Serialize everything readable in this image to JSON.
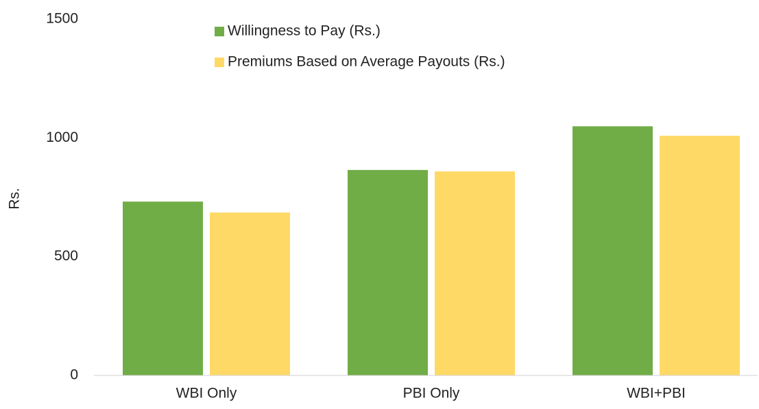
{
  "chart_data": {
    "type": "bar",
    "y_label": "Rs.",
    "categories": [
      "WBI Only",
      "PBI Only",
      "WBI+PBI"
    ],
    "series": [
      {
        "name": "Willingness to Pay (Rs.)",
        "color": "#70ad47",
        "values": [
          732,
          865,
          1049
        ]
      },
      {
        "name": "Premiums Based on Average Payouts (Rs.)",
        "color": "#ffd966",
        "values": [
          686,
          859,
          1009
        ]
      }
    ],
    "ylim": [
      0,
      1500
    ],
    "yticks": [
      0,
      500,
      1000,
      1500
    ],
    "grid": false,
    "legend": "top"
  }
}
